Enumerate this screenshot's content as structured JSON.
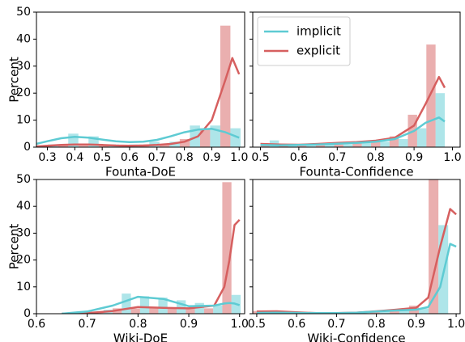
{
  "chart_data": [
    {
      "type": "histogram",
      "xlabel": "Founta-DoE",
      "ylabel": "Percent",
      "xlim": [
        0.26,
        1.02
      ],
      "xticks": [
        0.3,
        0.4,
        0.5,
        0.6,
        0.7,
        0.8,
        0.9,
        {
          "value": 1.0,
          "label": "1.0"
        }
      ],
      "ylim": [
        0,
        50
      ],
      "yticks": [
        0,
        10,
        20,
        30,
        40,
        50
      ],
      "bins": [
        0.265,
        0.339,
        0.413,
        0.487,
        0.561,
        0.635,
        0.709,
        0.783,
        0.857,
        0.931,
        1.005
      ],
      "kde_x": [
        0.25,
        0.3,
        0.35,
        0.4,
        0.45,
        0.5,
        0.55,
        0.6,
        0.65,
        0.7,
        0.75,
        0.8,
        0.85,
        0.9,
        0.95,
        0.975,
        1.0
      ],
      "series": [
        {
          "color": "#d65f5f",
          "values": [
            0.5,
            1,
            0.5,
            0.5,
            0.5,
            1,
            1,
            3,
            7,
            45
          ],
          "kde": [
            0.2,
            0.5,
            0.8,
            1,
            1,
            0.8,
            0.6,
            0.5,
            0.6,
            0.8,
            1.2,
            2,
            4,
            10,
            25,
            33,
            27
          ]
        },
        {
          "color": "#5ecbd3",
          "values": [
            1,
            5,
            4,
            1,
            1,
            2,
            2,
            8,
            8,
            7
          ],
          "kde": [
            1,
            2.2,
            3.3,
            3.8,
            3.5,
            2.8,
            2.2,
            1.9,
            2,
            2.7,
            4,
            5.5,
            6.5,
            6.8,
            5.5,
            4.5,
            3.5
          ]
        }
      ]
    },
    {
      "type": "histogram",
      "xlabel": "Founta-Confidence",
      "legend": "upper left",
      "xlim": [
        0.48,
        1.02
      ],
      "xticks": [
        0.5,
        0.6,
        0.7,
        0.8,
        0.9,
        {
          "value": 1.0,
          "label": "1.0"
        }
      ],
      "ylim": [
        0,
        50
      ],
      "yticks": [
        0,
        10,
        20,
        30,
        40,
        50
      ],
      "bins": [
        0.5,
        0.548,
        0.596,
        0.644,
        0.692,
        0.74,
        0.788,
        0.836,
        0.884,
        0.932,
        0.98
      ],
      "kde_x": [
        0.5,
        0.55,
        0.6,
        0.65,
        0.7,
        0.75,
        0.8,
        0.85,
        0.9,
        0.93,
        0.965,
        0.98
      ],
      "series": [
        {
          "name": "explicit",
          "color": "#d65f5f",
          "values": [
            1,
            0.5,
            0.5,
            1,
            1,
            1.5,
            2,
            4,
            12,
            38
          ],
          "kde": [
            1.2,
            1,
            0.9,
            1.2,
            1.6,
            1.9,
            2.4,
            3.5,
            8,
            16,
            26,
            22
          ]
        },
        {
          "name": "implicit",
          "color": "#5ecbd3",
          "values": [
            2.5,
            0.5,
            0.5,
            1,
            1,
            1.5,
            2,
            3,
            7,
            20
          ],
          "kde": [
            0.8,
            0.7,
            0.8,
            1,
            1.3,
            1.6,
            2,
            3,
            6,
            9,
            11,
            9.5
          ]
        }
      ]
    },
    {
      "type": "histogram",
      "xlabel": "Wiki-DoE",
      "ylabel": "Percent",
      "xlim": [
        0.6,
        1.01
      ],
      "xticks": [
        0.6,
        0.7,
        0.8,
        0.9,
        {
          "value": 1.0,
          "label": "1.0"
        }
      ],
      "ylim": [
        0,
        50
      ],
      "yticks": [
        0,
        10,
        20,
        30,
        40,
        50
      ],
      "bins": [
        0.714,
        0.75,
        0.786,
        0.822,
        0.858,
        0.894,
        0.93,
        0.966,
        1.002
      ],
      "kde_x": [
        0.65,
        0.7,
        0.75,
        0.8,
        0.85,
        0.9,
        0.95,
        0.97,
        0.98,
        0.99,
        1.0
      ],
      "series": [
        {
          "color": "#d65f5f",
          "values": [
            0.5,
            2,
            2,
            2,
            2,
            2,
            2,
            49
          ],
          "kde": [
            0,
            0.2,
            1,
            2.5,
            2.2,
            2,
            3,
            10,
            20,
            33,
            35
          ]
        },
        {
          "color": "#5ecbd3",
          "values": [
            1.5,
            7.5,
            6.5,
            6,
            5,
            4,
            3,
            7
          ],
          "kde": [
            0,
            0.8,
            3,
            6.3,
            5.5,
            2.8,
            3,
            3.8,
            4,
            3.8,
            3.2
          ]
        }
      ]
    },
    {
      "type": "histogram",
      "xlabel": "Wiki-Confidence",
      "xlim": [
        0.49,
        1.01
      ],
      "xticks": [
        0.5,
        0.6,
        0.7,
        0.8,
        0.9,
        {
          "value": 1.0,
          "label": "1.0"
        }
      ],
      "ylim": [
        0,
        50
      ],
      "yticks": [
        0,
        10,
        20,
        30,
        40,
        50
      ],
      "bins": [
        0.49,
        0.539,
        0.588,
        0.637,
        0.686,
        0.735,
        0.784,
        0.833,
        0.882,
        0.931,
        0.98
      ],
      "kde_x": [
        0.5,
        0.55,
        0.6,
        0.65,
        0.7,
        0.75,
        0.8,
        0.85,
        0.9,
        0.93,
        0.96,
        0.985,
        1.0
      ],
      "series": [
        {
          "color": "#d65f5f",
          "values": [
            1,
            0.5,
            0,
            0,
            0,
            0.5,
            1,
            1.5,
            3,
            50
          ],
          "kde": [
            0.8,
            0.9,
            0.5,
            0.2,
            0.2,
            0.4,
            0.9,
            1.5,
            2.2,
            6,
            25,
            39,
            37
          ]
        },
        {
          "color": "#5ecbd3",
          "values": [
            0.5,
            0,
            0,
            0,
            0,
            0.5,
            1,
            1.5,
            2,
            33
          ],
          "kde": [
            0.3,
            0.4,
            0.3,
            0.2,
            0.2,
            0.4,
            0.8,
            1.2,
            1.5,
            2.5,
            10,
            26,
            25
          ]
        }
      ]
    }
  ]
}
